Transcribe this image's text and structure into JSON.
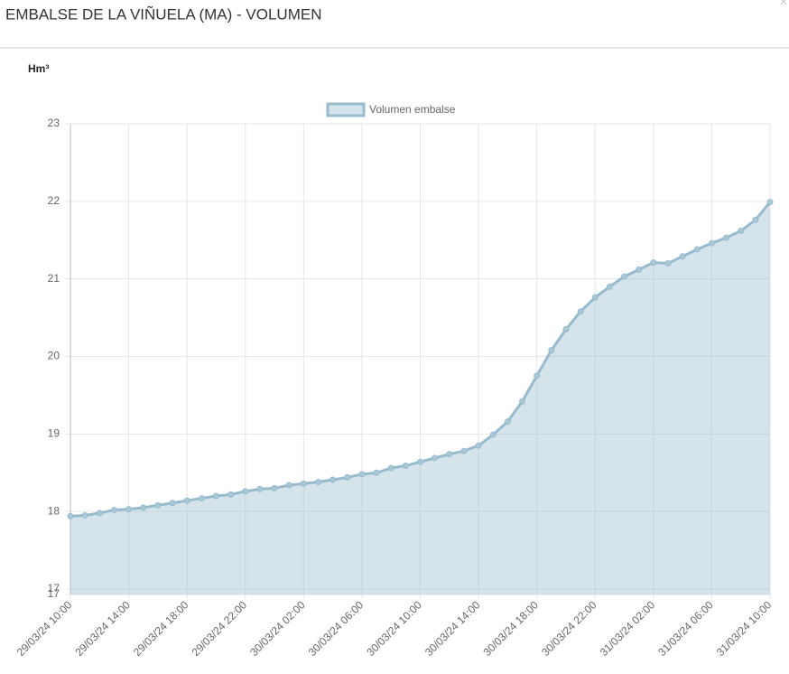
{
  "header": {
    "title": "EMBALSE DE LA VIÑUELA (MA) - VOLUMEN",
    "close": "×"
  },
  "chart_data": {
    "type": "area",
    "y_label": "Hm³",
    "categories": [
      "29/03/24 10:00",
      null,
      null,
      null,
      "29/03/24 14:00",
      null,
      null,
      null,
      "29/03/24 18:00",
      null,
      null,
      null,
      "29/03/24 22:00",
      null,
      null,
      null,
      "30/03/24 02:00",
      null,
      null,
      null,
      "30/03/24 06:00",
      null,
      null,
      null,
      "30/03/24 10:00",
      null,
      null,
      null,
      "30/03/24 14:00",
      null,
      null,
      null,
      "30/03/24 18:00",
      null,
      null,
      null,
      "30/03/24 22:00",
      null,
      null,
      null,
      "31/03/24 02:00",
      null,
      null,
      null,
      "31/03/24 06:00",
      null,
      null,
      null,
      "31/03/24 10:00"
    ],
    "series": [
      {
        "name": "Volumen embalse",
        "color": "#97bbcd",
        "values": [
          17.94,
          17.95,
          17.98,
          18.02,
          18.03,
          18.05,
          18.08,
          18.11,
          18.14,
          18.17,
          18.2,
          18.22,
          18.26,
          18.29,
          18.3,
          18.34,
          18.36,
          18.38,
          18.41,
          18.44,
          18.48,
          18.5,
          18.56,
          18.59,
          18.64,
          18.69,
          18.74,
          18.78,
          18.85,
          18.99,
          19.16,
          19.42,
          19.75,
          20.08,
          20.35,
          20.58,
          20.76,
          20.9,
          21.03,
          21.12,
          21.21,
          21.2,
          21.29,
          21.38,
          21.46,
          21.53,
          21.62,
          21.76,
          21.99
        ]
      }
    ],
    "ylim": [
      16.93,
      23
    ],
    "yticks": [
      {
        "value": 16.93,
        "label": "17"
      },
      17,
      18,
      19,
      20,
      21,
      22,
      23
    ],
    "grid": true,
    "legend": "top"
  }
}
